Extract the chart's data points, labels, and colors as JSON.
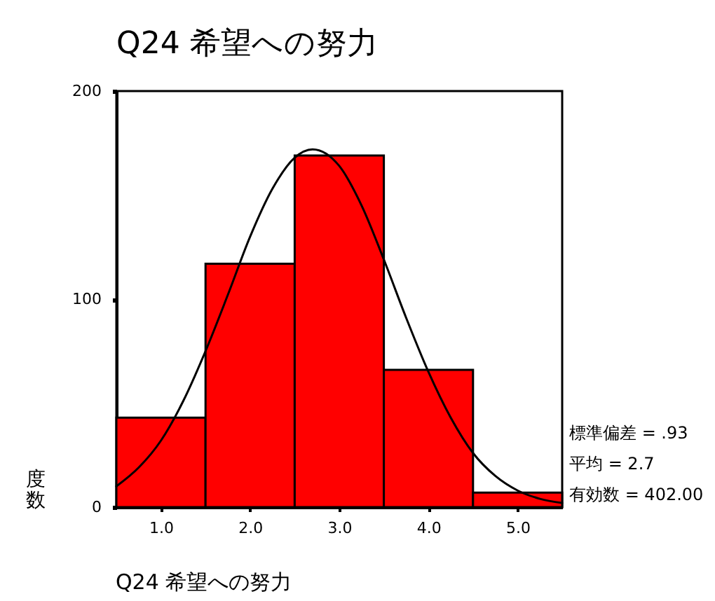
{
  "chart_data": {
    "type": "histogram",
    "title": "Q24 希望への努力",
    "xlabel": "Q24 希望への努力",
    "ylabel": "度数",
    "bins": [
      0.5,
      1.5,
      2.5,
      3.5,
      4.5,
      5.5
    ],
    "series": [
      {
        "color": "#ff0000",
        "values": [
          43,
          117,
          169,
          66,
          7
        ]
      },
      {
        "type": "line",
        "color": "#000000",
        "x": [
          0.5,
          0.75,
          1.0,
          1.25,
          1.5,
          1.75,
          2.0,
          2.25,
          2.5,
          2.7,
          3.0,
          3.25,
          3.5,
          3.75,
          4.0,
          4.25,
          4.5,
          4.75,
          5.0,
          5.25,
          5.5
        ],
        "values": [
          10,
          19,
          32,
          51,
          75,
          102,
          130,
          153,
          168,
          172,
          164,
          145,
          119,
          91,
          65,
          43,
          26,
          15,
          8,
          4,
          2
        ]
      }
    ],
    "xlim": [
      0.5,
      5.5
    ],
    "ylim": [
      0,
      200
    ],
    "xticks": [
      {
        "value": 1,
        "label": "1.0"
      },
      {
        "value": 2,
        "label": "2.0"
      },
      {
        "value": 3,
        "label": "3.0"
      },
      {
        "value": 4,
        "label": "4.0"
      },
      {
        "value": 5,
        "label": "5.0"
      }
    ],
    "yticks": [
      0,
      100,
      200
    ],
    "grid": false,
    "annotations": [
      "標準偏差 = .93",
      "平均 = 2.7",
      "有効数 = 402.00"
    ]
  }
}
